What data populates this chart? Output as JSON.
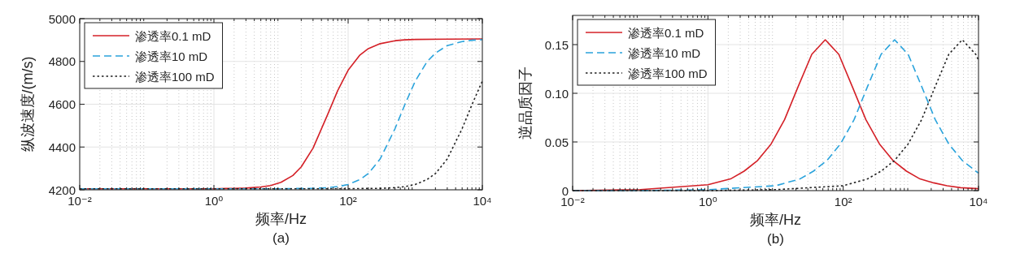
{
  "chart_data": [
    {
      "type": "line",
      "xlabel": "频率/Hz",
      "ylabel": "纵波速度/(m/s)",
      "annotations": [
        "(a)"
      ],
      "log": "x",
      "grid": true,
      "legend": "top left",
      "xlim": [
        0.01,
        10000
      ],
      "xticks": [
        {
          "value": 0.01,
          "label": "10⁻²"
        },
        {
          "value": 1,
          "label": "10⁰"
        },
        {
          "value": 100,
          "label": "10²"
        },
        {
          "value": 10000,
          "label": "10⁴"
        }
      ],
      "ylim": [
        4200,
        5000
      ],
      "yticks": [
        4200,
        4400,
        4600,
        4800,
        5000
      ],
      "series": [
        {
          "name": "渗透率0.1 mD",
          "color": "#d42027",
          "line_style": "solid",
          "x": [
            0.01,
            0.1,
            1,
            1.5,
            2,
            3,
            5,
            7,
            10,
            15,
            20,
            30,
            50,
            70,
            100,
            150,
            200,
            300,
            500,
            700,
            1000,
            3000,
            10000
          ],
          "values": [
            4205,
            4205,
            4205,
            4206,
            4206,
            4208,
            4213,
            4220,
            4235,
            4267,
            4307,
            4395,
            4555,
            4664,
            4759,
            4830,
            4860,
            4883,
            4897,
            4901,
            4903,
            4904,
            4905
          ]
        },
        {
          "name": "渗透率10 mD",
          "color": "#2aa3dc",
          "line_style": "dashed",
          "x": [
            0.01,
            0.1,
            1,
            10,
            15,
            20,
            30,
            50,
            70,
            100,
            150,
            200,
            300,
            500,
            700,
            1000,
            1500,
            2000,
            3000,
            5000,
            7000,
            10000
          ],
          "values": [
            4205,
            4205,
            4205,
            4205,
            4206,
            4206,
            4207,
            4210,
            4215,
            4225,
            4248,
            4276,
            4344,
            4486,
            4598,
            4708,
            4799,
            4839,
            4874,
            4893,
            4899,
            4902
          ]
        },
        {
          "name": "渗透率100 mD",
          "color": "#222222",
          "line_style": "dotted",
          "x": [
            0.01,
            0.1,
            1,
            10,
            100,
            150,
            200,
            300,
            500,
            700,
            1000,
            1500,
            2000,
            3000,
            5000,
            7000,
            10000
          ],
          "values": [
            4205,
            4205,
            4205,
            4205,
            4205,
            4206,
            4206,
            4207,
            4210,
            4215,
            4225,
            4248,
            4276,
            4344,
            4486,
            4598,
            4708
          ]
        }
      ]
    },
    {
      "type": "line",
      "xlabel": "频率/Hz",
      "ylabel": "逆品质因子",
      "annotations": [
        "(b)"
      ],
      "log": "x",
      "grid": true,
      "legend": "top left",
      "xlim": [
        0.01,
        10000
      ],
      "xticks": [
        {
          "value": 0.01,
          "label": "10⁻²"
        },
        {
          "value": 1,
          "label": "10⁰"
        },
        {
          "value": 100,
          "label": "10²"
        },
        {
          "value": 10000,
          "label": "10⁴"
        }
      ],
      "ylim": [
        0,
        0.18
      ],
      "yticks": [
        0,
        0.05,
        {
          "value": 0.1,
          "label": "0.10"
        },
        0.15
      ],
      "series": [
        {
          "name": "渗透率0.1 mD",
          "color": "#d42027",
          "line_style": "solid",
          "x": [
            0.01,
            0.1,
            1,
            2.16,
            3.43,
            5.43,
            8.61,
            13.6,
            21.6,
            34.3,
            54.3,
            86.1,
            136,
            216,
            343,
            543,
            861,
            1365,
            2163,
            3428,
            5433,
            10000
          ],
          "values": [
            0,
            0.001,
            0.006,
            0.012,
            0.02,
            0.031,
            0.048,
            0.073,
            0.107,
            0.14,
            0.155,
            0.14,
            0.107,
            0.073,
            0.048,
            0.031,
            0.02,
            0.012,
            0.008,
            0.005,
            0.003,
            0.002
          ]
        },
        {
          "name": "渗透率10 mD",
          "color": "#2aa3dc",
          "line_style": "dashed",
          "x": [
            0.01,
            0.1,
            1,
            10,
            22.9,
            36.3,
            57.5,
            91.2,
            145,
            229,
            363,
            575,
            912,
            1445,
            2291,
            3631,
            5754,
            9120,
            10000
          ],
          "values": [
            0,
            0,
            0.001,
            0.005,
            0.012,
            0.02,
            0.031,
            0.048,
            0.073,
            0.107,
            0.14,
            0.155,
            0.14,
            0.107,
            0.073,
            0.048,
            0.031,
            0.02,
            0.018
          ]
        },
        {
          "name": "渗透率100 mD",
          "color": "#222222",
          "line_style": "dotted",
          "x": [
            0.01,
            1,
            10,
            100,
            229,
            363,
            575,
            912,
            1445,
            2291,
            3631,
            5754,
            9120,
            10000
          ],
          "values": [
            0,
            0,
            0.001,
            0.005,
            0.012,
            0.02,
            0.031,
            0.048,
            0.073,
            0.107,
            0.14,
            0.155,
            0.14,
            0.134
          ]
        }
      ]
    }
  ]
}
